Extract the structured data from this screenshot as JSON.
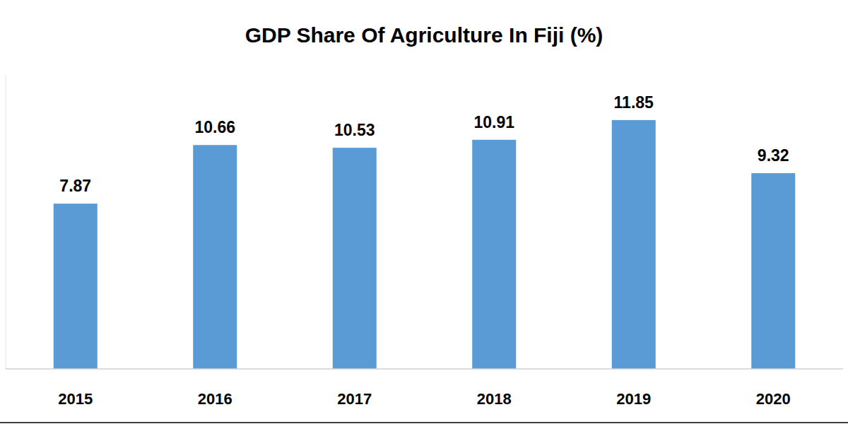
{
  "chart_data": {
    "type": "bar",
    "title": "GDP Share Of Agriculture In Fiji (%)",
    "categories": [
      "2015",
      "2016",
      "2017",
      "2018",
      "2019",
      "2020"
    ],
    "values": [
      7.87,
      10.66,
      10.53,
      10.91,
      11.85,
      9.32
    ],
    "color": "#5b9bd5",
    "ylim": [
      0,
      14
    ],
    "data_labels": true,
    "tick_labels": "x"
  }
}
